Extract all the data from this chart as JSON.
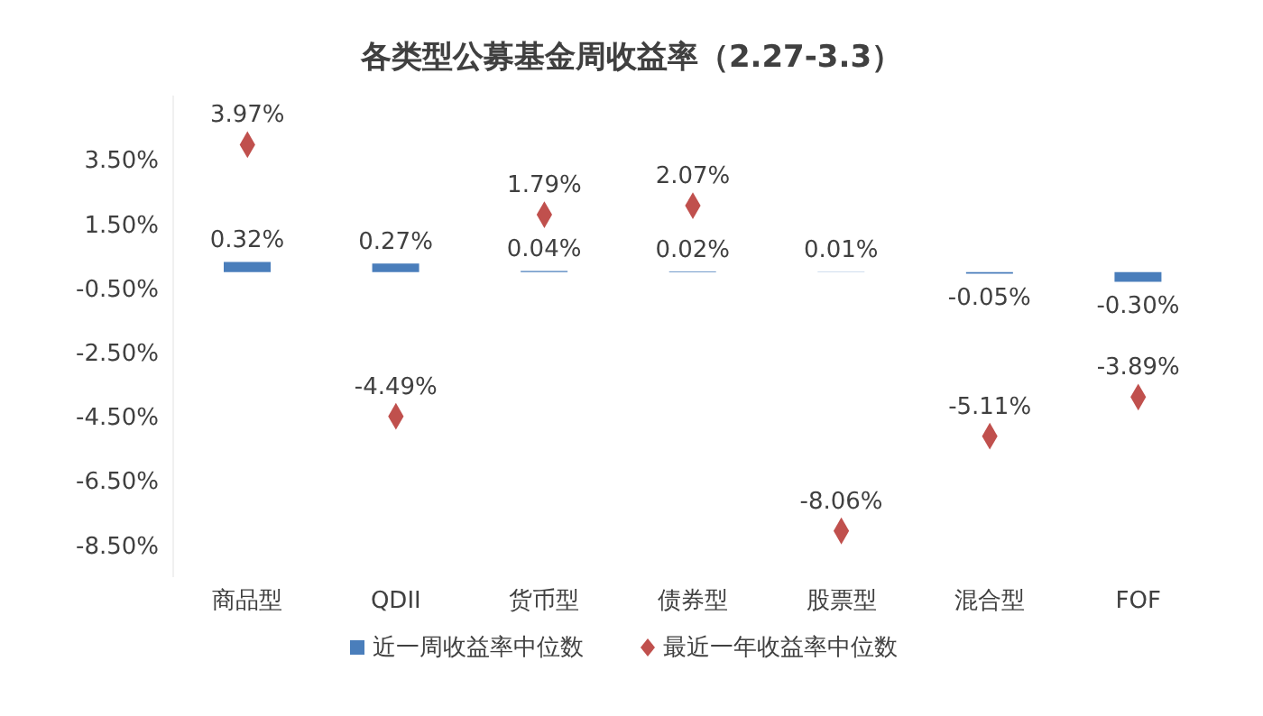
{
  "chart_data": {
    "type": "bar",
    "title": "各类型公募基金周收益率（2.27-3.3）",
    "categories": [
      "商品型",
      "QDII",
      "货币型",
      "债券型",
      "股票型",
      "混合型",
      "FOF"
    ],
    "series": [
      {
        "name": "近一周收益率中位数",
        "color": "#4a7ebb",
        "values": [
          0.32,
          0.27,
          0.04,
          0.02,
          0.01,
          -0.05,
          -0.3
        ],
        "value_labels": [
          "0.32%",
          "0.27%",
          "0.04%",
          "0.02%",
          "0.01%",
          "-0.05%",
          "-0.30%"
        ]
      },
      {
        "name": "最近一年收益率中位数",
        "type": "scatter",
        "color": "#c0504d",
        "marker": "diamond",
        "values": [
          3.97,
          -4.49,
          1.79,
          2.07,
          -8.06,
          -5.11,
          -3.89
        ],
        "value_labels": [
          "3.97%",
          "-4.49%",
          "1.79%",
          "2.07%",
          "-8.06%",
          "-5.11%",
          "-3.89%"
        ]
      }
    ],
    "ylim": [
      -9.5,
      5.5
    ],
    "yticks": [
      {
        "value": 3.5,
        "label": "3.50%"
      },
      {
        "value": 1.5,
        "label": "1.50%"
      },
      {
        "value": -0.5,
        "label": "-0.50%"
      },
      {
        "value": -2.5,
        "label": "-2.50%"
      },
      {
        "value": -4.5,
        "label": "-4.50%"
      },
      {
        "value": -6.5,
        "label": "-6.50%"
      },
      {
        "value": -8.5,
        "label": "-8.50%"
      }
    ],
    "grid": false,
    "legend": "bottom"
  }
}
